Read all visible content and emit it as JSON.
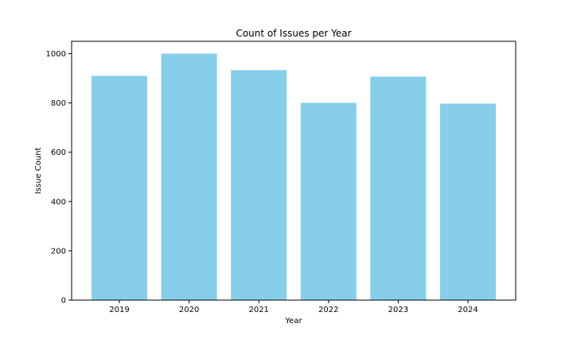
{
  "chart_data": {
    "type": "bar",
    "title": "Count of Issues per Year",
    "xlabel": "Year",
    "ylabel": "Issue Count",
    "categories": [
      "2019",
      "2020",
      "2021",
      "2022",
      "2023",
      "2024"
    ],
    "values": [
      910,
      1000,
      933,
      800,
      907,
      797
    ],
    "ylim": [
      0,
      1050
    ],
    "yticks": [
      0,
      200,
      400,
      600,
      800,
      1000
    ],
    "bar_color": "#87CEEB",
    "grid": false,
    "legend": "none"
  }
}
